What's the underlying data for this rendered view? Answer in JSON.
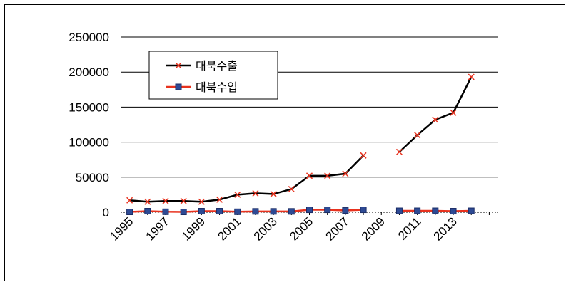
{
  "chart_data": {
    "type": "line",
    "x": [
      1995,
      1996,
      1997,
      1998,
      1999,
      2000,
      2001,
      2002,
      2003,
      2004,
      2005,
      2006,
      2007,
      2008,
      2009,
      2010,
      2011,
      2012,
      2013,
      2014,
      2015
    ],
    "x_tick_labels": [
      "1995",
      "1997",
      "1999",
      "2001",
      "2003",
      "2005",
      "2007",
      "2009",
      "2011",
      "2013"
    ],
    "ylim": [
      0,
      250000
    ],
    "y_ticks": [
      0,
      50000,
      100000,
      150000,
      200000,
      250000
    ],
    "y_tick_labels": [
      "0",
      "50000",
      "100000",
      "150000",
      "200000",
      "250000"
    ],
    "grid": "horizontal",
    "legend_position": "top-left",
    "series": [
      {
        "name": "대북수출",
        "color": "#000000",
        "marker": "x",
        "marker_color": "#e8321e",
        "values": [
          17000,
          15000,
          16000,
          16000,
          15000,
          18000,
          25000,
          27000,
          26000,
          33000,
          52000,
          52000,
          55000,
          81000,
          null,
          86000,
          110000,
          132000,
          142000,
          193000,
          null
        ]
      },
      {
        "name": "대북수입",
        "color": "#e8321e",
        "marker": "square",
        "marker_color": "#2e4a94",
        "values": [
          500,
          1500,
          700,
          500,
          1500,
          1500,
          700,
          1200,
          1200,
          1200,
          3500,
          3500,
          2500,
          3500,
          null,
          2000,
          2000,
          2000,
          1500,
          2000,
          null
        ]
      }
    ]
  }
}
